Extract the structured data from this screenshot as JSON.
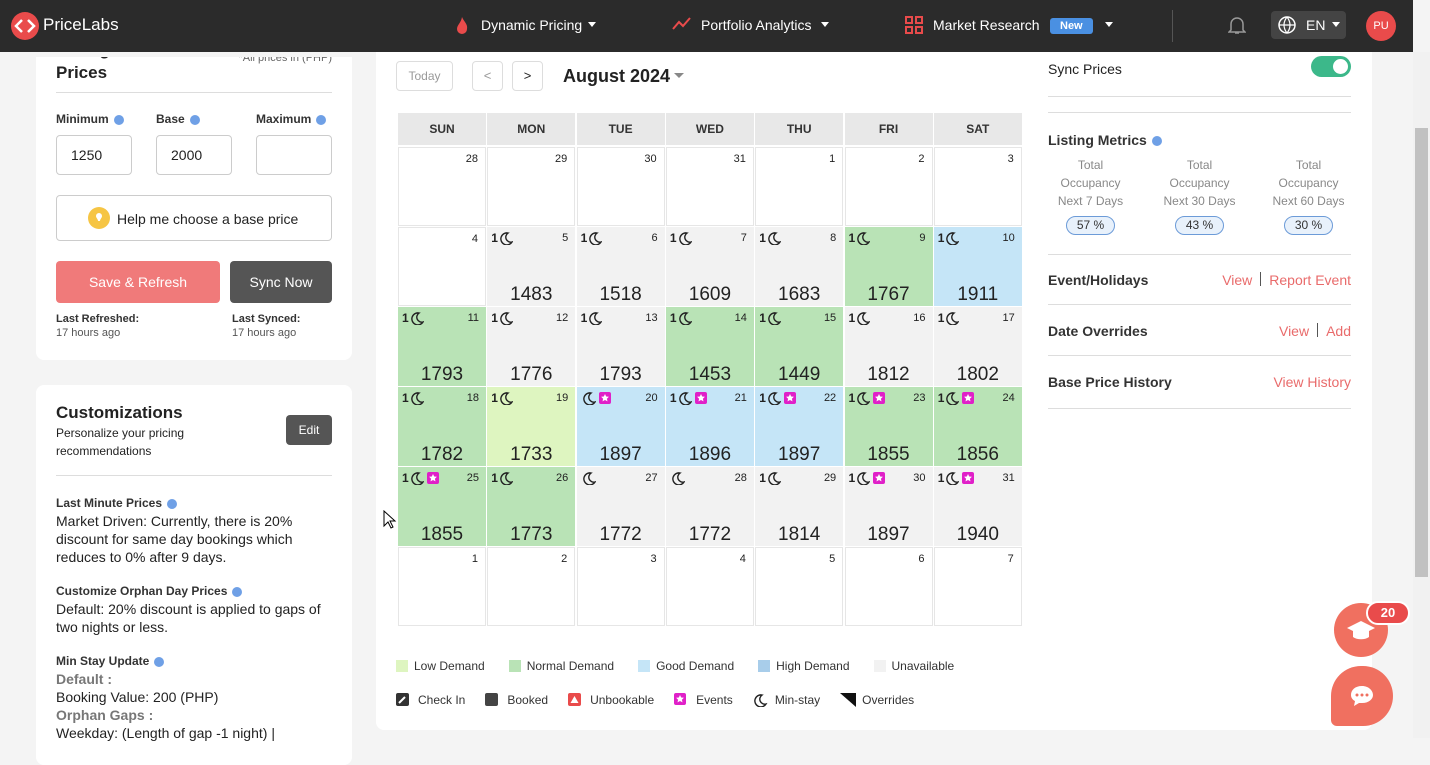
{
  "nav": {
    "brand": "PriceLabs",
    "items": [
      "Dynamic Pricing",
      "Portfolio Analytics",
      "Market Research"
    ],
    "badge": "New",
    "lang": "EN",
    "avatar": "PU"
  },
  "configure": {
    "title": [
      "Configure",
      "Prices"
    ],
    "note": "*All prices in (PHP)",
    "fields": [
      {
        "label": "Minimum",
        "value": "1250"
      },
      {
        "label": "Base",
        "value": "2000"
      },
      {
        "label": "Maximum"
      }
    ],
    "help": "Help me choose a base price",
    "save": "Save & Refresh",
    "sync": "Sync Now",
    "refreshed_label": "Last Refreshed:",
    "refreshed": "17 hours ago",
    "synced_label": "Last Synced:",
    "synced": "17 hours ago"
  },
  "customizations": {
    "title": "Customizations",
    "subtitle": "Personalize your pricing recommendations",
    "edit": "Edit",
    "sections": [
      {
        "title": "Last Minute Prices",
        "lines": [
          "Market Driven: Currently, there is 20% discount for same day bookings which reduces to 0% after 9 days."
        ]
      },
      {
        "title": "Customize Orphan Day Prices",
        "lines": [
          "Default: 20% discount is applied to gaps of two nights or less."
        ]
      },
      {
        "title": "Min Stay Update",
        "sub": [
          {
            "head": "Default :",
            "line": "Booking Value: 200 (PHP)"
          },
          {
            "head": "Orphan Gaps :",
            "line": "Weekday: (Length of gap -1 night) |"
          }
        ]
      }
    ]
  },
  "calendar": {
    "today": "Today",
    "prev": "<",
    "next": ">",
    "month": "August 2024",
    "weekdays": [
      "SUN",
      "MON",
      "TUE",
      "WED",
      "THU",
      "FRI",
      "SAT"
    ],
    "cells": [
      {
        "day": 28
      },
      {
        "day": 29
      },
      {
        "day": 30
      },
      {
        "day": 31
      },
      {
        "day": 1
      },
      {
        "day": 2
      },
      {
        "day": 3
      },
      {
        "day": 4
      },
      {
        "day": 5,
        "price": 1483,
        "status": "unavailable",
        "min_stay": 1
      },
      {
        "day": 6,
        "price": 1518,
        "status": "unavailable",
        "min_stay": 1
      },
      {
        "day": 7,
        "price": 1609,
        "status": "unavailable",
        "min_stay": 1
      },
      {
        "day": 8,
        "price": 1683,
        "status": "unavailable",
        "min_stay": 1
      },
      {
        "day": 9,
        "price": 1767,
        "status": "normal",
        "min_stay": 1
      },
      {
        "day": 10,
        "price": 1911,
        "status": "good",
        "min_stay": 1
      },
      {
        "day": 11,
        "price": 1793,
        "status": "normal",
        "min_stay": 1
      },
      {
        "day": 12,
        "price": 1776,
        "status": "unavailable",
        "min_stay": 1
      },
      {
        "day": 13,
        "price": 1793,
        "status": "unavailable",
        "min_stay": 1
      },
      {
        "day": 14,
        "price": 1453,
        "status": "normal",
        "min_stay": 1
      },
      {
        "day": 15,
        "price": 1449,
        "status": "normal",
        "min_stay": 1
      },
      {
        "day": 16,
        "price": 1812,
        "status": "unavailable",
        "min_stay": 1
      },
      {
        "day": 17,
        "price": 1802,
        "status": "unavailable",
        "min_stay": 1
      },
      {
        "day": 18,
        "price": 1782,
        "status": "normal",
        "min_stay": 1
      },
      {
        "day": 19,
        "price": 1733,
        "status": "low",
        "min_stay": 1
      },
      {
        "day": 20,
        "price": 1897,
        "status": "good",
        "event": true
      },
      {
        "day": 21,
        "price": 1896,
        "status": "good",
        "min_stay": 1,
        "event": true
      },
      {
        "day": 22,
        "price": 1897,
        "status": "good",
        "min_stay": 1,
        "event": true
      },
      {
        "day": 23,
        "price": 1855,
        "status": "normal",
        "min_stay": 1,
        "event": true
      },
      {
        "day": 24,
        "price": 1856,
        "status": "normal",
        "min_stay": 1,
        "event": true
      },
      {
        "day": 25,
        "price": 1855,
        "status": "normal",
        "min_stay": 1,
        "event": true
      },
      {
        "day": 26,
        "price": 1773,
        "status": "normal",
        "min_stay": 1
      },
      {
        "day": 27,
        "price": 1772,
        "status": "unavailable"
      },
      {
        "day": 28,
        "price": 1772,
        "status": "unavailable"
      },
      {
        "day": 29,
        "price": 1814,
        "status": "unavailable",
        "min_stay": 1
      },
      {
        "day": 30,
        "price": 1897,
        "status": "unavailable",
        "min_stay": 1,
        "event": true
      },
      {
        "day": 31,
        "price": 1940,
        "status": "unavailable",
        "min_stay": 1,
        "event": true
      },
      {
        "day": 1
      },
      {
        "day": 2
      },
      {
        "day": 3
      },
      {
        "day": 4
      },
      {
        "day": 5
      },
      {
        "day": 6
      },
      {
        "day": 7
      }
    ],
    "legend_demand": [
      "Low Demand",
      "Normal Demand",
      "Good Demand",
      "High Demand",
      "Unavailable"
    ],
    "legend_icons": [
      "Check In",
      "Booked",
      "Unbookable",
      "Events",
      "Min-stay",
      "Overrides"
    ]
  },
  "side": {
    "sync": "Sync Prices",
    "metrics_title": "Listing Metrics",
    "metrics": [
      {
        "lines": [
          "Total",
          "Occupancy",
          "Next 7 Days"
        ],
        "value": "57 %"
      },
      {
        "lines": [
          "Total",
          "Occupancy",
          "Next 30 Days"
        ],
        "value": "43 %"
      },
      {
        "lines": [
          "Total",
          "Occupancy",
          "Next 60 Days"
        ],
        "value": "30 %"
      }
    ],
    "rows": [
      {
        "label": "Event/Holidays",
        "links": [
          "View",
          "Report Event"
        ]
      },
      {
        "label": "Date Overrides",
        "links": [
          "View",
          "Add"
        ]
      },
      {
        "label": "Base Price History",
        "links": [
          "View History"
        ]
      }
    ]
  },
  "chat_badge": "20"
}
